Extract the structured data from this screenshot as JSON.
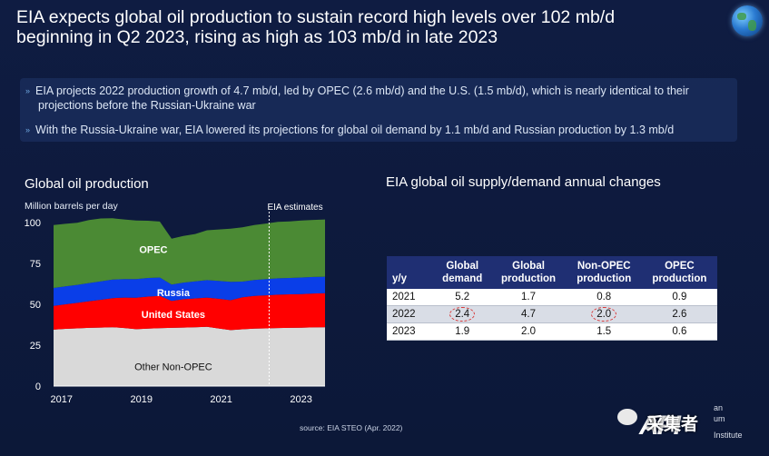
{
  "slide": {
    "title_line1": "EIA expects global oil production to sustain record high levels over 102 mb/d",
    "title_line2": "beginning in Q2 2023, rising as high as 103 mb/d in late 2023",
    "bullets": [
      "EIA projects 2022 production growth of 4.7 mb/d, led by OPEC (2.6 mb/d) and the U.S. (1.5 mb/d), which is nearly identical to their",
      "projections before the Russian-Ukraine war",
      "With the Russia-Ukraine war, EIA lowered its projections for global oil demand by 1.1 mb/d and Russian production by 1.3 mb/d"
    ],
    "source": "source: EIA STEO (Apr. 2022)"
  },
  "chart_data": {
    "type": "area",
    "title": "Global oil production",
    "ylabel": "Million barrels per day",
    "ylim": [
      0,
      100
    ],
    "yticks": [
      "100",
      "75",
      "50",
      "25",
      "0"
    ],
    "xticks": [
      "2017",
      "2019",
      "2021",
      "2023"
    ],
    "annotation": "EIA estimates",
    "series": [
      {
        "name": "Other Non-OPEC",
        "color": "#d9d9d9",
        "values": [
          34.5,
          35,
          35.3,
          35.6,
          35.8,
          36,
          35.5,
          34.8,
          35.1,
          35.4,
          35.6,
          35.8,
          36,
          36.2,
          35.2,
          34.2,
          34.7,
          35.1,
          35.3,
          35.5,
          35.6,
          35.7,
          35.9,
          36
        ]
      },
      {
        "name": "United States",
        "color": "#ff0000",
        "values": [
          14.5,
          15,
          15.6,
          16.3,
          17,
          17.8,
          18.6,
          19.2,
          19.6,
          19.7,
          16.5,
          17.3,
          17.6,
          17.9,
          18.2,
          18.3,
          19.6,
          20,
          20.2,
          20.4,
          20.5,
          20.6,
          20.7,
          20.8
        ]
      },
      {
        "name": "Russia",
        "color": "#0a3ee8",
        "values": [
          11,
          11,
          11,
          11.1,
          11.2,
          11.3,
          11.3,
          11.4,
          11.4,
          11.3,
          10,
          10.2,
          10.4,
          10.7,
          10.9,
          11.2,
          9.6,
          9.8,
          9.9,
          10,
          10,
          10.1,
          10.1,
          10.1
        ]
      },
      {
        "name": "OPEC",
        "color": "#4b8a34",
        "values": [
          38.5,
          38.2,
          38,
          38.5,
          38.5,
          37.5,
          36.5,
          35.8,
          35,
          34.2,
          28,
          28.5,
          29,
          30.5,
          31.5,
          32.6,
          33.2,
          33.6,
          34,
          34.5,
          34.6,
          34.8,
          34.9,
          35
        ]
      }
    ],
    "x_start": 2016.8,
    "x_end": 2023.6,
    "estimate_start": 2022.2
  },
  "table": {
    "title": "EIA global oil supply/demand annual changes",
    "headers": [
      [
        "y/y"
      ],
      [
        "Global",
        "demand"
      ],
      [
        "Global",
        "production"
      ],
      [
        "Non-OPEC",
        "production"
      ],
      [
        "OPEC",
        "production"
      ]
    ],
    "rows": [
      [
        "2021",
        "5.2",
        "1.7",
        "0.8",
        "0.9"
      ],
      [
        "2022",
        "2.4",
        "4.7",
        "2.0",
        "2.6"
      ],
      [
        "2023",
        "1.9",
        "2.0",
        "1.5",
        "0.6"
      ]
    ]
  },
  "watermark": {
    "logo": "API",
    "wechat": "采集者",
    "line1": "an",
    "line2": "um",
    "line3": "Institute"
  }
}
